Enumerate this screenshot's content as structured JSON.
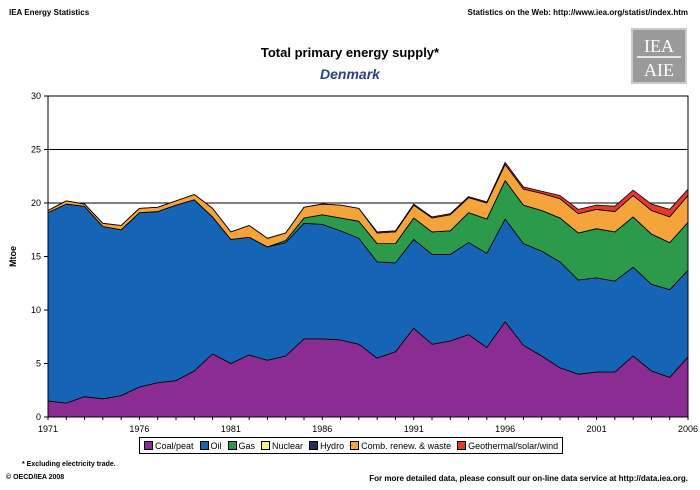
{
  "header": {
    "left": "IEA Energy Statistics",
    "right": "Statistics on the Web: http://www.iea.org/statist/index.htm"
  },
  "logo": {
    "text_top": "IEA",
    "text_bottom": "AIE"
  },
  "footnote": "* Excluding electricity trade.",
  "copyright": "© OECD/IEA 2008",
  "footer_right": "For more detailed data, please consult our on-line data service at http://data.iea.org.",
  "chart_data": {
    "type": "area",
    "stacked": true,
    "title": "Total primary energy supply*",
    "subtitle": "Denmark",
    "ylabel": "Mtoe",
    "xlabel": "",
    "ylim": [
      0,
      30
    ],
    "yticks": [
      0,
      5,
      10,
      15,
      20,
      25,
      30
    ],
    "xlim": [
      1971,
      2006
    ],
    "xticks": [
      1971,
      1976,
      1981,
      1986,
      1991,
      1996,
      2001,
      2006
    ],
    "grid": "horizontal",
    "legend_position": "bottom",
    "x": [
      1971,
      1972,
      1973,
      1974,
      1975,
      1976,
      1977,
      1978,
      1979,
      1980,
      1981,
      1982,
      1983,
      1984,
      1985,
      1986,
      1987,
      1988,
      1989,
      1990,
      1991,
      1992,
      1993,
      1994,
      1995,
      1996,
      1997,
      1998,
      1999,
      2000,
      2001,
      2002,
      2003,
      2004,
      2005,
      2006
    ],
    "series": [
      {
        "name": "Coal/peat",
        "color": "#8b2c92",
        "values": [
          1.5,
          1.3,
          1.9,
          1.7,
          2.0,
          2.8,
          3.2,
          3.4,
          4.3,
          5.9,
          5.0,
          5.8,
          5.3,
          5.7,
          7.3,
          7.3,
          7.2,
          6.8,
          5.5,
          6.1,
          8.3,
          6.8,
          7.1,
          7.7,
          6.5,
          8.9,
          6.7,
          5.7,
          4.6,
          4.0,
          4.2,
          4.2,
          5.7,
          4.3,
          3.7,
          5.6
        ]
      },
      {
        "name": "Oil",
        "color": "#1564b5",
        "values": [
          17.6,
          18.6,
          17.8,
          16.1,
          15.5,
          16.3,
          16.0,
          16.4,
          16.0,
          12.8,
          11.6,
          11.0,
          10.6,
          10.6,
          10.8,
          10.7,
          10.2,
          9.9,
          9.0,
          8.3,
          8.3,
          8.4,
          8.1,
          8.6,
          8.8,
          9.6,
          9.5,
          9.8,
          9.9,
          8.8,
          8.8,
          8.5,
          8.3,
          8.1,
          8.2,
          8.1
        ]
      },
      {
        "name": "Gas",
        "color": "#2c9a4b",
        "values": [
          0,
          0,
          0,
          0,
          0,
          0,
          0,
          0,
          0,
          0,
          0,
          0,
          0,
          0.2,
          0.5,
          0.9,
          1.2,
          1.6,
          1.7,
          1.8,
          2.0,
          2.1,
          2.2,
          2.8,
          3.2,
          3.6,
          3.6,
          3.8,
          4.1,
          4.4,
          4.6,
          4.6,
          4.7,
          4.7,
          4.4,
          4.5
        ]
      },
      {
        "name": "Nuclear",
        "color": "#f4f083",
        "values": [
          0,
          0,
          0,
          0,
          0,
          0,
          0,
          0,
          0,
          0,
          0,
          0,
          0,
          0,
          0,
          0,
          0,
          0,
          0,
          0,
          0,
          0,
          0,
          0,
          0,
          0,
          0,
          0,
          0,
          0,
          0,
          0,
          0,
          0,
          0,
          0
        ]
      },
      {
        "name": "Hydro",
        "color": "#242a63",
        "values": [
          0,
          0,
          0,
          0,
          0,
          0,
          0,
          0,
          0,
          0,
          0,
          0,
          0,
          0,
          0,
          0,
          0,
          0,
          0,
          0,
          0,
          0,
          0,
          0,
          0,
          0,
          0,
          0,
          0,
          0,
          0,
          0,
          0,
          0,
          0,
          0
        ]
      },
      {
        "name": "Comb. renew. & waste",
        "color": "#f5a33b",
        "values": [
          0.2,
          0.3,
          0.2,
          0.3,
          0.4,
          0.4,
          0.4,
          0.4,
          0.5,
          0.8,
          0.7,
          1.1,
          0.8,
          0.7,
          1.0,
          1.0,
          1.2,
          1.2,
          1.0,
          1.1,
          1.2,
          1.3,
          1.5,
          1.4,
          1.5,
          1.5,
          1.5,
          1.6,
          1.8,
          1.8,
          1.8,
          1.9,
          2.0,
          2.2,
          2.4,
          2.5
        ]
      },
      {
        "name": "Geothermal/solar/wind",
        "color": "#e8382a",
        "values": [
          0,
          0,
          0,
          0,
          0,
          0,
          0,
          0,
          0,
          0,
          0,
          0,
          0,
          0,
          0,
          0,
          0,
          0,
          0.1,
          0.1,
          0.1,
          0.1,
          0.1,
          0.1,
          0.1,
          0.2,
          0.2,
          0.2,
          0.3,
          0.4,
          0.4,
          0.5,
          0.5,
          0.6,
          0.7,
          0.6
        ]
      }
    ]
  }
}
